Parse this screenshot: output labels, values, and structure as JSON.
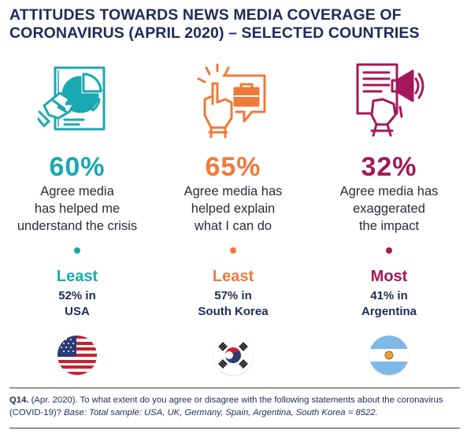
{
  "title": "ATTITUDES TOWARDS NEWS MEDIA COVERAGE OF CORONAVIRUS (APRIL 2020) – SELECTED COUNTRIES",
  "colors": {
    "title": "#1e2a5a",
    "teal": "#19a9b1",
    "orange": "#ee7a3a",
    "magenta": "#a3195b"
  },
  "columns": [
    {
      "icon": "pie-chart-hand-icon",
      "percent": "60%",
      "statement_lines": [
        "Agree media",
        "has helped me",
        "understand the crisis"
      ],
      "rank": "Least",
      "stat": "52% in",
      "country": "USA",
      "flag": "usa-flag-icon"
    },
    {
      "icon": "briefcase-hand-icon",
      "percent": "65%",
      "statement_lines": [
        "Agree media has",
        "helped explain",
        "what I can do"
      ],
      "rank": "Least",
      "stat": "57% in",
      "country": "South Korea",
      "flag": "south-korea-flag-icon"
    },
    {
      "icon": "megaphone-hand-icon",
      "percent": "32%",
      "statement_lines": [
        "Agree media has",
        "exaggerated",
        "the impact"
      ],
      "rank": "Most",
      "stat": "41% in",
      "country": "Argentina",
      "flag": "argentina-flag-icon"
    }
  ],
  "footer": {
    "q_label": "Q14.",
    "q_text": " (Apr. 2020). To what extent do you agree or disagree with the following statements about the coronavirus (COVID-19)? ",
    "base": "Base: Total sample: USA, UK, Germany, Spain, Argentina, South Korea = 8522."
  }
}
